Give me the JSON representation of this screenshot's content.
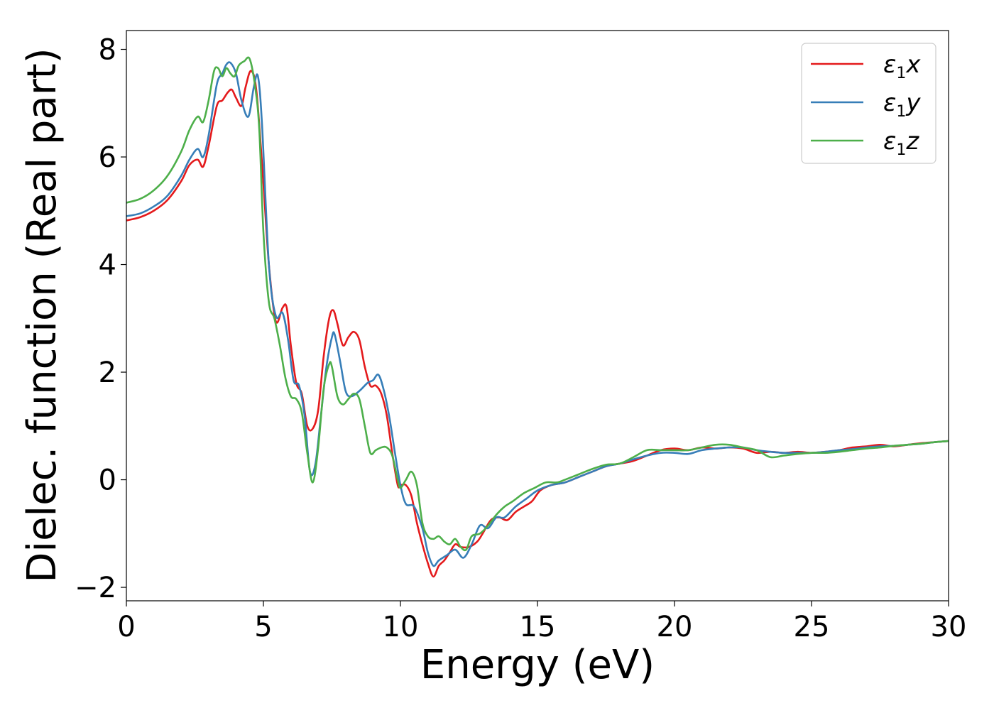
{
  "chart_data": {
    "type": "line",
    "title": "",
    "xlabel": "Energy (eV)",
    "ylabel": "Dielec. function (Real part)",
    "xlim": [
      0,
      30
    ],
    "ylim": [
      -2.25,
      8.35
    ],
    "xticks": [
      0,
      5,
      10,
      15,
      20,
      25,
      30
    ],
    "xtick_labels": [
      "0",
      "5",
      "10",
      "15",
      "20",
      "25",
      "30"
    ],
    "yticks": [
      -2,
      0,
      2,
      4,
      6,
      8
    ],
    "ytick_labels": [
      "−2",
      "0",
      "2",
      "4",
      "6",
      "8"
    ],
    "grid": false,
    "legend_position": "top-right",
    "series": [
      {
        "name": "ε1x",
        "legend_symbol": "ε",
        "legend_sub": "1",
        "legend_axis": "x",
        "color": "#e41a1c",
        "x": [
          0,
          0.5,
          1,
          1.5,
          2,
          2.3,
          2.6,
          2.8,
          3.0,
          3.3,
          3.5,
          3.7,
          3.85,
          4.0,
          4.2,
          4.35,
          4.55,
          4.75,
          5.0,
          5.2,
          5.45,
          5.7,
          5.85,
          6.0,
          6.2,
          6.4,
          6.6,
          6.8,
          7.0,
          7.2,
          7.4,
          7.55,
          7.7,
          7.9,
          8.1,
          8.3,
          8.5,
          8.7,
          8.9,
          9.1,
          9.3,
          9.5,
          9.7,
          9.9,
          10.0,
          10.2,
          10.4,
          10.6,
          10.8,
          11.0,
          11.2,
          11.4,
          11.6,
          11.8,
          12.0,
          12.2,
          12.5,
          12.8,
          13.0,
          13.3,
          13.6,
          13.9,
          14.2,
          14.5,
          14.8,
          15.1,
          15.5,
          16.0,
          16.5,
          17.0,
          17.5,
          18.0,
          18.5,
          19.0,
          19.5,
          20.0,
          20.5,
          21.0,
          21.5,
          22.0,
          22.5,
          23.0,
          23.5,
          24.0,
          24.5,
          25.0,
          25.5,
          26.0,
          26.5,
          27.0,
          27.5,
          28.0,
          28.5,
          29.0,
          29.5,
          30.0
        ],
        "y": [
          4.82,
          4.88,
          5.0,
          5.2,
          5.55,
          5.85,
          5.95,
          5.82,
          6.2,
          6.95,
          7.05,
          7.2,
          7.25,
          7.1,
          6.95,
          7.3,
          7.6,
          7.2,
          5.5,
          4.0,
          2.95,
          3.2,
          3.2,
          2.5,
          1.8,
          1.6,
          1.0,
          0.95,
          1.3,
          2.3,
          3.0,
          3.15,
          2.9,
          2.5,
          2.65,
          2.75,
          2.6,
          2.1,
          1.75,
          1.75,
          1.6,
          1.2,
          0.5,
          -0.1,
          -0.1,
          -0.1,
          -0.3,
          -0.8,
          -1.2,
          -1.55,
          -1.8,
          -1.6,
          -1.5,
          -1.35,
          -1.2,
          -1.25,
          -1.25,
          -1.15,
          -1.0,
          -0.75,
          -0.7,
          -0.75,
          -0.6,
          -0.5,
          -0.4,
          -0.2,
          -0.1,
          -0.05,
          0.05,
          0.15,
          0.25,
          0.3,
          0.35,
          0.45,
          0.55,
          0.58,
          0.55,
          0.6,
          0.58,
          0.6,
          0.58,
          0.5,
          0.52,
          0.5,
          0.52,
          0.5,
          0.52,
          0.55,
          0.6,
          0.62,
          0.65,
          0.62,
          0.65,
          0.68,
          0.7,
          0.72
        ]
      },
      {
        "name": "ε1y",
        "legend_symbol": "ε",
        "legend_sub": "1",
        "legend_axis": "y",
        "color": "#377eb8",
        "x": [
          0,
          0.5,
          1,
          1.5,
          2,
          2.3,
          2.6,
          2.8,
          3.0,
          3.3,
          3.5,
          3.65,
          3.8,
          4.0,
          4.2,
          4.45,
          4.65,
          4.8,
          4.95,
          5.2,
          5.45,
          5.7,
          5.9,
          6.1,
          6.3,
          6.5,
          6.7,
          6.9,
          7.1,
          7.3,
          7.5,
          7.6,
          7.8,
          8.0,
          8.2,
          8.5,
          8.8,
          9.0,
          9.2,
          9.4,
          9.6,
          9.8,
          10.0,
          10.2,
          10.5,
          10.8,
          11.0,
          11.2,
          11.4,
          11.7,
          12.0,
          12.3,
          12.6,
          12.9,
          13.2,
          13.5,
          13.8,
          14.2,
          14.6,
          15.0,
          15.5,
          16.0,
          16.5,
          17.0,
          17.5,
          18.0,
          18.5,
          19.0,
          19.5,
          20.0,
          20.5,
          21.0,
          21.5,
          22.0,
          22.5,
          23.0,
          23.5,
          24.0,
          24.5,
          25.0,
          25.5,
          26.0,
          26.5,
          27.0,
          27.5,
          28.0,
          28.5,
          29.0,
          29.5,
          30.0
        ],
        "y": [
          4.9,
          4.95,
          5.08,
          5.28,
          5.65,
          5.95,
          6.15,
          6.0,
          6.4,
          7.35,
          7.55,
          7.72,
          7.75,
          7.55,
          7.05,
          6.75,
          7.3,
          7.5,
          6.6,
          4.0,
          3.05,
          3.1,
          2.6,
          1.85,
          1.75,
          1.2,
          0.15,
          0.3,
          1.2,
          2.1,
          2.65,
          2.7,
          2.2,
          1.65,
          1.55,
          1.65,
          1.8,
          1.85,
          1.95,
          1.65,
          1.15,
          0.5,
          -0.1,
          -0.45,
          -0.5,
          -0.9,
          -1.35,
          -1.6,
          -1.5,
          -1.4,
          -1.3,
          -1.45,
          -1.2,
          -0.85,
          -0.9,
          -0.7,
          -0.7,
          -0.5,
          -0.35,
          -0.2,
          -0.1,
          -0.05,
          0.05,
          0.15,
          0.25,
          0.3,
          0.38,
          0.45,
          0.5,
          0.5,
          0.48,
          0.55,
          0.58,
          0.6,
          0.6,
          0.55,
          0.52,
          0.5,
          0.5,
          0.5,
          0.52,
          0.55,
          0.57,
          0.6,
          0.62,
          0.63,
          0.65,
          0.67,
          0.7,
          0.72
        ]
      },
      {
        "name": "ε1z",
        "legend_symbol": "ε",
        "legend_sub": "1",
        "legend_axis": "z",
        "color": "#4daf4a",
        "x": [
          0,
          0.5,
          1,
          1.5,
          2,
          2.3,
          2.6,
          2.8,
          3.0,
          3.2,
          3.35,
          3.5,
          3.65,
          3.8,
          3.95,
          4.1,
          4.3,
          4.5,
          4.7,
          4.85,
          5.0,
          5.2,
          5.4,
          5.6,
          5.8,
          6.0,
          6.2,
          6.4,
          6.6,
          6.8,
          7.0,
          7.2,
          7.4,
          7.5,
          7.7,
          7.9,
          8.1,
          8.3,
          8.5,
          8.7,
          8.9,
          9.1,
          9.3,
          9.5,
          9.7,
          9.9,
          10.0,
          10.2,
          10.4,
          10.6,
          10.8,
          11.0,
          11.2,
          11.4,
          11.6,
          11.8,
          12.0,
          12.2,
          12.4,
          12.6,
          12.9,
          13.2,
          13.5,
          13.8,
          14.1,
          14.5,
          14.9,
          15.3,
          15.7,
          16.0,
          16.5,
          17.0,
          17.5,
          18.0,
          18.5,
          19.0,
          19.5,
          20.0,
          20.5,
          21.0,
          21.5,
          22.0,
          22.5,
          23.0,
          23.5,
          24.0,
          24.5,
          25.0,
          25.5,
          26.0,
          26.5,
          27.0,
          27.5,
          28.0,
          28.5,
          29.0,
          29.5,
          30.0
        ],
        "y": [
          5.15,
          5.22,
          5.38,
          5.65,
          6.1,
          6.5,
          6.75,
          6.65,
          7.05,
          7.6,
          7.65,
          7.5,
          7.65,
          7.55,
          7.5,
          7.7,
          7.78,
          7.82,
          7.3,
          6.5,
          4.6,
          3.3,
          3.0,
          2.5,
          1.9,
          1.55,
          1.5,
          1.25,
          0.5,
          -0.05,
          0.6,
          1.7,
          2.15,
          2.1,
          1.55,
          1.4,
          1.5,
          1.6,
          1.5,
          1.0,
          0.5,
          0.55,
          0.6,
          0.6,
          0.45,
          0.0,
          -0.15,
          0.0,
          0.15,
          -0.1,
          -0.8,
          -1.05,
          -1.1,
          -1.05,
          -1.15,
          -1.2,
          -1.1,
          -1.25,
          -1.3,
          -1.05,
          -1.0,
          -0.85,
          -0.65,
          -0.5,
          -0.4,
          -0.25,
          -0.15,
          -0.05,
          -0.05,
          0.0,
          0.1,
          0.2,
          0.28,
          0.3,
          0.42,
          0.55,
          0.55,
          0.55,
          0.55,
          0.6,
          0.65,
          0.65,
          0.6,
          0.55,
          0.42,
          0.45,
          0.48,
          0.5,
          0.5,
          0.52,
          0.55,
          0.58,
          0.6,
          0.63,
          0.65,
          0.67,
          0.7,
          0.72
        ]
      }
    ]
  }
}
